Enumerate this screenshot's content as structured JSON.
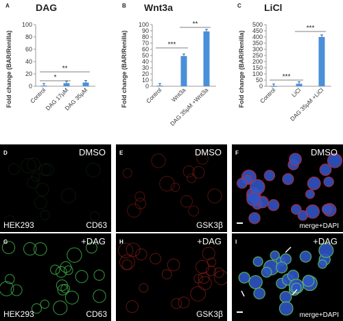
{
  "chart_data": [
    {
      "type": "bar",
      "panel": "A",
      "title": "DAG",
      "ylabel": "Fold change (BAR/Renilla)",
      "xlabel": "",
      "ylim": [
        0,
        100
      ],
      "yticks": [
        0,
        20,
        40,
        60,
        80,
        100
      ],
      "categories": [
        "Control",
        "DAG 17μM",
        "DAG 35μM"
      ],
      "values": [
        1,
        5,
        6
      ],
      "significance": [
        {
          "from": 0,
          "to": 1,
          "label": "*"
        },
        {
          "from": 0,
          "to": 2,
          "label": "**"
        }
      ],
      "color": "#4a90d9",
      "grid": false
    },
    {
      "type": "bar",
      "panel": "B",
      "title": "Wnt3a",
      "ylabel": "Fold change (BAR/Renilla)",
      "xlabel": "",
      "ylim": [
        0,
        100
      ],
      "yticks": [
        0,
        10,
        20,
        30,
        40,
        50,
        60,
        70,
        80,
        90,
        100
      ],
      "categories": [
        "Control",
        "Wnt3a",
        "DAG 35μM +Wnt3a"
      ],
      "values": [
        1,
        49,
        89
      ],
      "significance": [
        {
          "from": 0,
          "to": 1,
          "label": "***"
        },
        {
          "from": 1,
          "to": 2,
          "label": "**"
        }
      ],
      "color": "#4a90d9",
      "grid": false
    },
    {
      "type": "bar",
      "panel": "C",
      "title": "LiCl",
      "ylabel": "Fold change (BAR/Renilla)",
      "xlabel": "",
      "ylim": [
        0,
        500
      ],
      "yticks": [
        0,
        50,
        100,
        150,
        200,
        250,
        300,
        350,
        400,
        450,
        500
      ],
      "categories": [
        "Control",
        "LiCl",
        "DAG 35μM +LiCl"
      ],
      "values": [
        1,
        20,
        400
      ],
      "significance": [
        {
          "from": 0,
          "to": 1,
          "label": "***"
        },
        {
          "from": 1,
          "to": 2,
          "label": "***"
        }
      ],
      "color": "#4a90d9",
      "grid": false
    }
  ],
  "micrographs": [
    {
      "letter": "D",
      "condition": "DMSO",
      "left_label": "HEK293",
      "right_label": "CD63",
      "channel": "green"
    },
    {
      "letter": "E",
      "condition": "DMSO",
      "left_label": "",
      "right_label": "GSK3β",
      "channel": "red"
    },
    {
      "letter": "F",
      "condition": "DMSO",
      "left_label": "",
      "right_label": "merge+DAPI",
      "channel": "merge"
    },
    {
      "letter": "G",
      "condition": "+DAG",
      "left_label": "HEK293",
      "right_label": "CD63",
      "channel": "green"
    },
    {
      "letter": "H",
      "condition": "+DAG",
      "left_label": "",
      "right_label": "GSK3β",
      "channel": "red"
    },
    {
      "letter": "I",
      "condition": "+DAG",
      "left_label": "",
      "right_label": "merge+DAPI",
      "channel": "merge"
    }
  ]
}
